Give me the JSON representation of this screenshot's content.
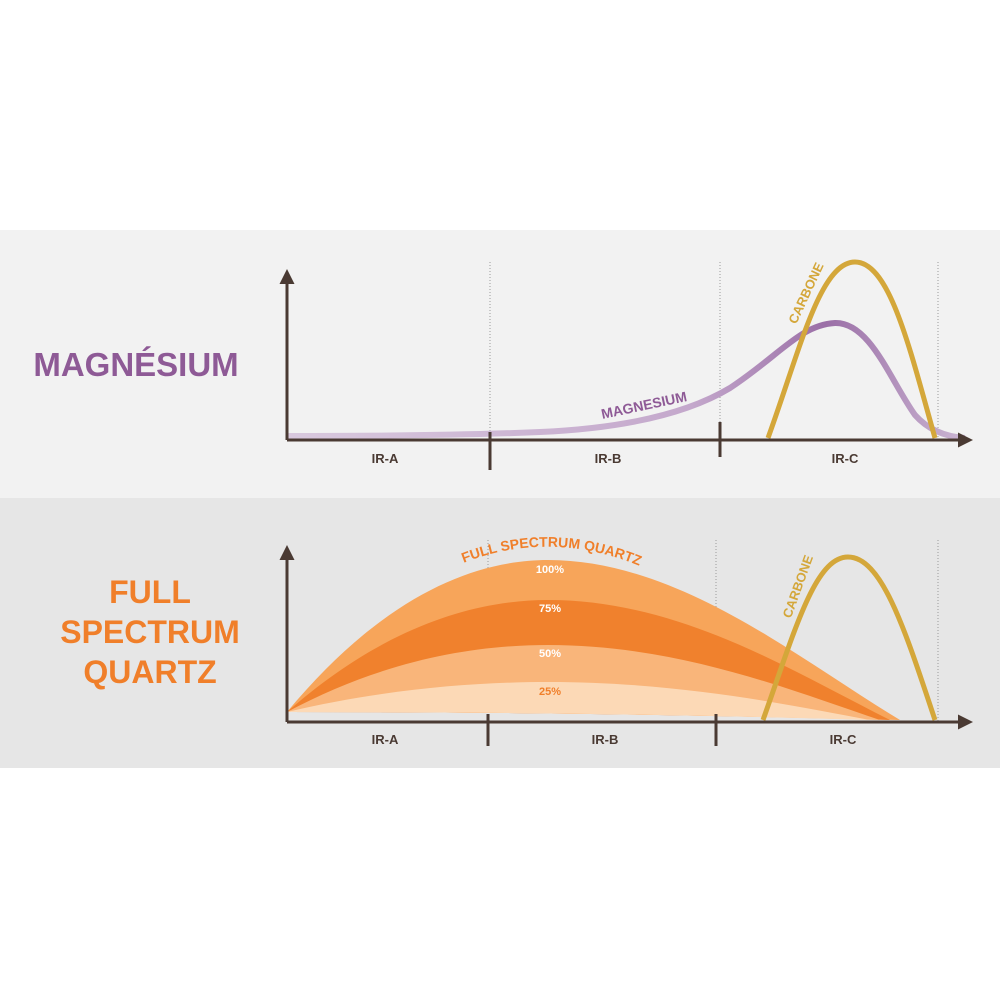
{
  "panels": [
    {
      "title": "MAGNÉSIUM",
      "curve_labels": [
        "MAGNESIUM",
        "CARBONE"
      ],
      "bands": [
        "IR-A",
        "IR-B",
        "IR-C"
      ]
    },
    {
      "title_lines": [
        "FULL",
        "SPECTRUM",
        "QUARTZ"
      ],
      "curve_labels": [
        "FULL SPECTRUM QUARTZ",
        "CARBONE"
      ],
      "levels": [
        "100%",
        "75%",
        "50%",
        "25%"
      ],
      "bands": [
        "IR-A",
        "IR-B",
        "IR-C"
      ]
    }
  ]
}
